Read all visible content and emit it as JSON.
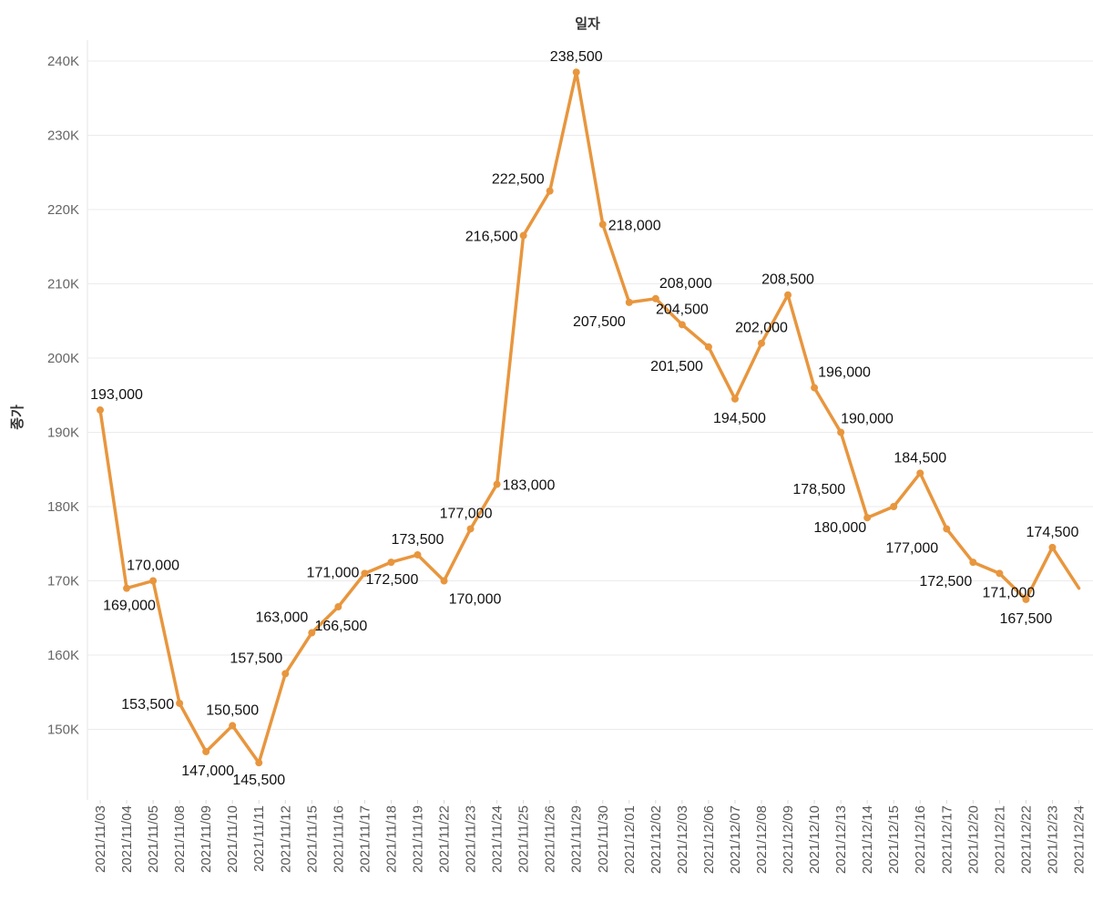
{
  "chart_data": {
    "type": "line",
    "title": "일자",
    "xlabel": "일자",
    "ylabel": "종가",
    "ylim": [
      141500,
      243000
    ],
    "yticks": [
      150000,
      160000,
      170000,
      180000,
      190000,
      200000,
      210000,
      220000,
      230000,
      240000
    ],
    "ytick_labels": [
      "150K",
      "160K",
      "170K",
      "180K",
      "190K",
      "200K",
      "210K",
      "220K",
      "230K",
      "240K"
    ],
    "line_color": "#E8963E",
    "grid": true,
    "categories": [
      "2021/11/03",
      "2021/11/04",
      "2021/11/05",
      "2021/11/08",
      "2021/11/09",
      "2021/11/10",
      "2021/11/11",
      "2021/11/12",
      "2021/11/15",
      "2021/11/16",
      "2021/11/17",
      "2021/11/18",
      "2021/11/19",
      "2021/11/22",
      "2021/11/23",
      "2021/11/24",
      "2021/11/25",
      "2021/11/26",
      "2021/11/29",
      "2021/11/30",
      "2021/12/01",
      "2021/12/02",
      "2021/12/03",
      "2021/12/06",
      "2021/12/07",
      "2021/12/08",
      "2021/12/09",
      "2021/12/10",
      "2021/12/13",
      "2021/12/14",
      "2021/12/15",
      "2021/12/16",
      "2021/12/17",
      "2021/12/20",
      "2021/12/21",
      "2021/12/22",
      "2021/12/23",
      "2021/12/24"
    ],
    "values": [
      193000,
      169000,
      170000,
      153500,
      147000,
      150500,
      145500,
      157500,
      163000,
      166500,
      171000,
      172500,
      173500,
      170000,
      177000,
      183000,
      216500,
      222500,
      238500,
      218000,
      207500,
      208000,
      204500,
      201500,
      194500,
      202000,
      208500,
      196000,
      190000,
      178500,
      180000,
      184500,
      177000,
      172500,
      171000,
      167500,
      174500,
      169000
    ],
    "data_labels": [
      "193,000",
      "169,000",
      "170,000",
      "153,500",
      "147,000",
      "150,500",
      "145,500",
      "157,500",
      "163,000",
      "166,500",
      "171,000",
      "172,500",
      "173,500",
      "170,000",
      "177,000",
      "183,000",
      "216,500",
      "222,500",
      "238,500",
      "218,000",
      "207,500",
      "208,000",
      "204,500",
      "201,500",
      "194,500",
      "202,000",
      "208,500",
      "196,000",
      "190,000",
      "178,500",
      "180,000",
      "184,500",
      "177,000",
      "172,500",
      "171,000",
      "167,500",
      "174,500",
      ""
    ]
  }
}
